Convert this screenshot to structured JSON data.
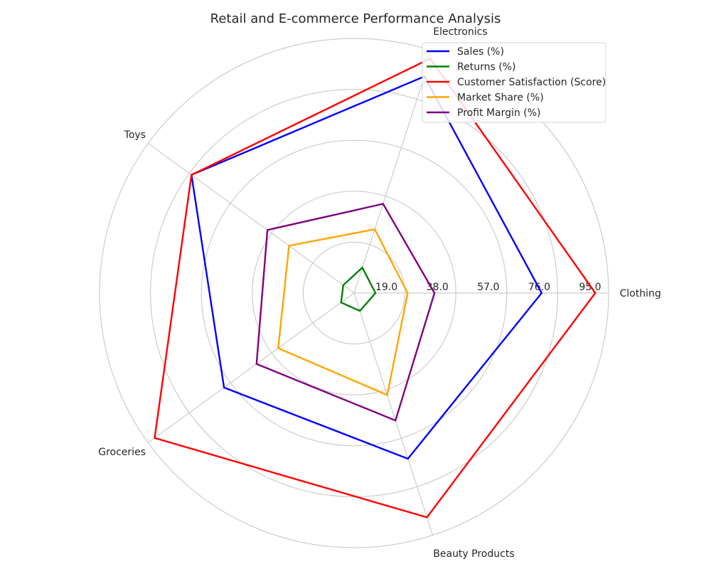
{
  "chart_data": {
    "type": "radar",
    "title": "Retail and E-commerce Performance Analysis",
    "categories": [
      "Clothing",
      "Electronics",
      "Toys",
      "Groceries",
      "Beauty Products"
    ],
    "rlim": [
      0,
      95
    ],
    "r_ticks": [
      "19.0",
      "38.0",
      "57.0",
      "76.0",
      "95.0"
    ],
    "grid": true,
    "legend_position": "top-right",
    "series": [
      {
        "name": "Sales (%)",
        "color": "#0000ff",
        "values": [
          70,
          85,
          75,
          60,
          65
        ]
      },
      {
        "name": "Returns (%)",
        "color": "#008000",
        "values": [
          8,
          10,
          5,
          6,
          7
        ]
      },
      {
        "name": "Customer Satisfaction (Score)",
        "color": "#ff0000",
        "values": [
          90,
          92,
          75,
          92,
          88
        ]
      },
      {
        "name": "Market Share (%)",
        "color": "#ffa500",
        "values": [
          20,
          25,
          30,
          35,
          40
        ]
      },
      {
        "name": "Profit Margin (%)",
        "color": "#800080",
        "values": [
          30,
          35,
          40,
          45,
          50
        ]
      }
    ]
  }
}
